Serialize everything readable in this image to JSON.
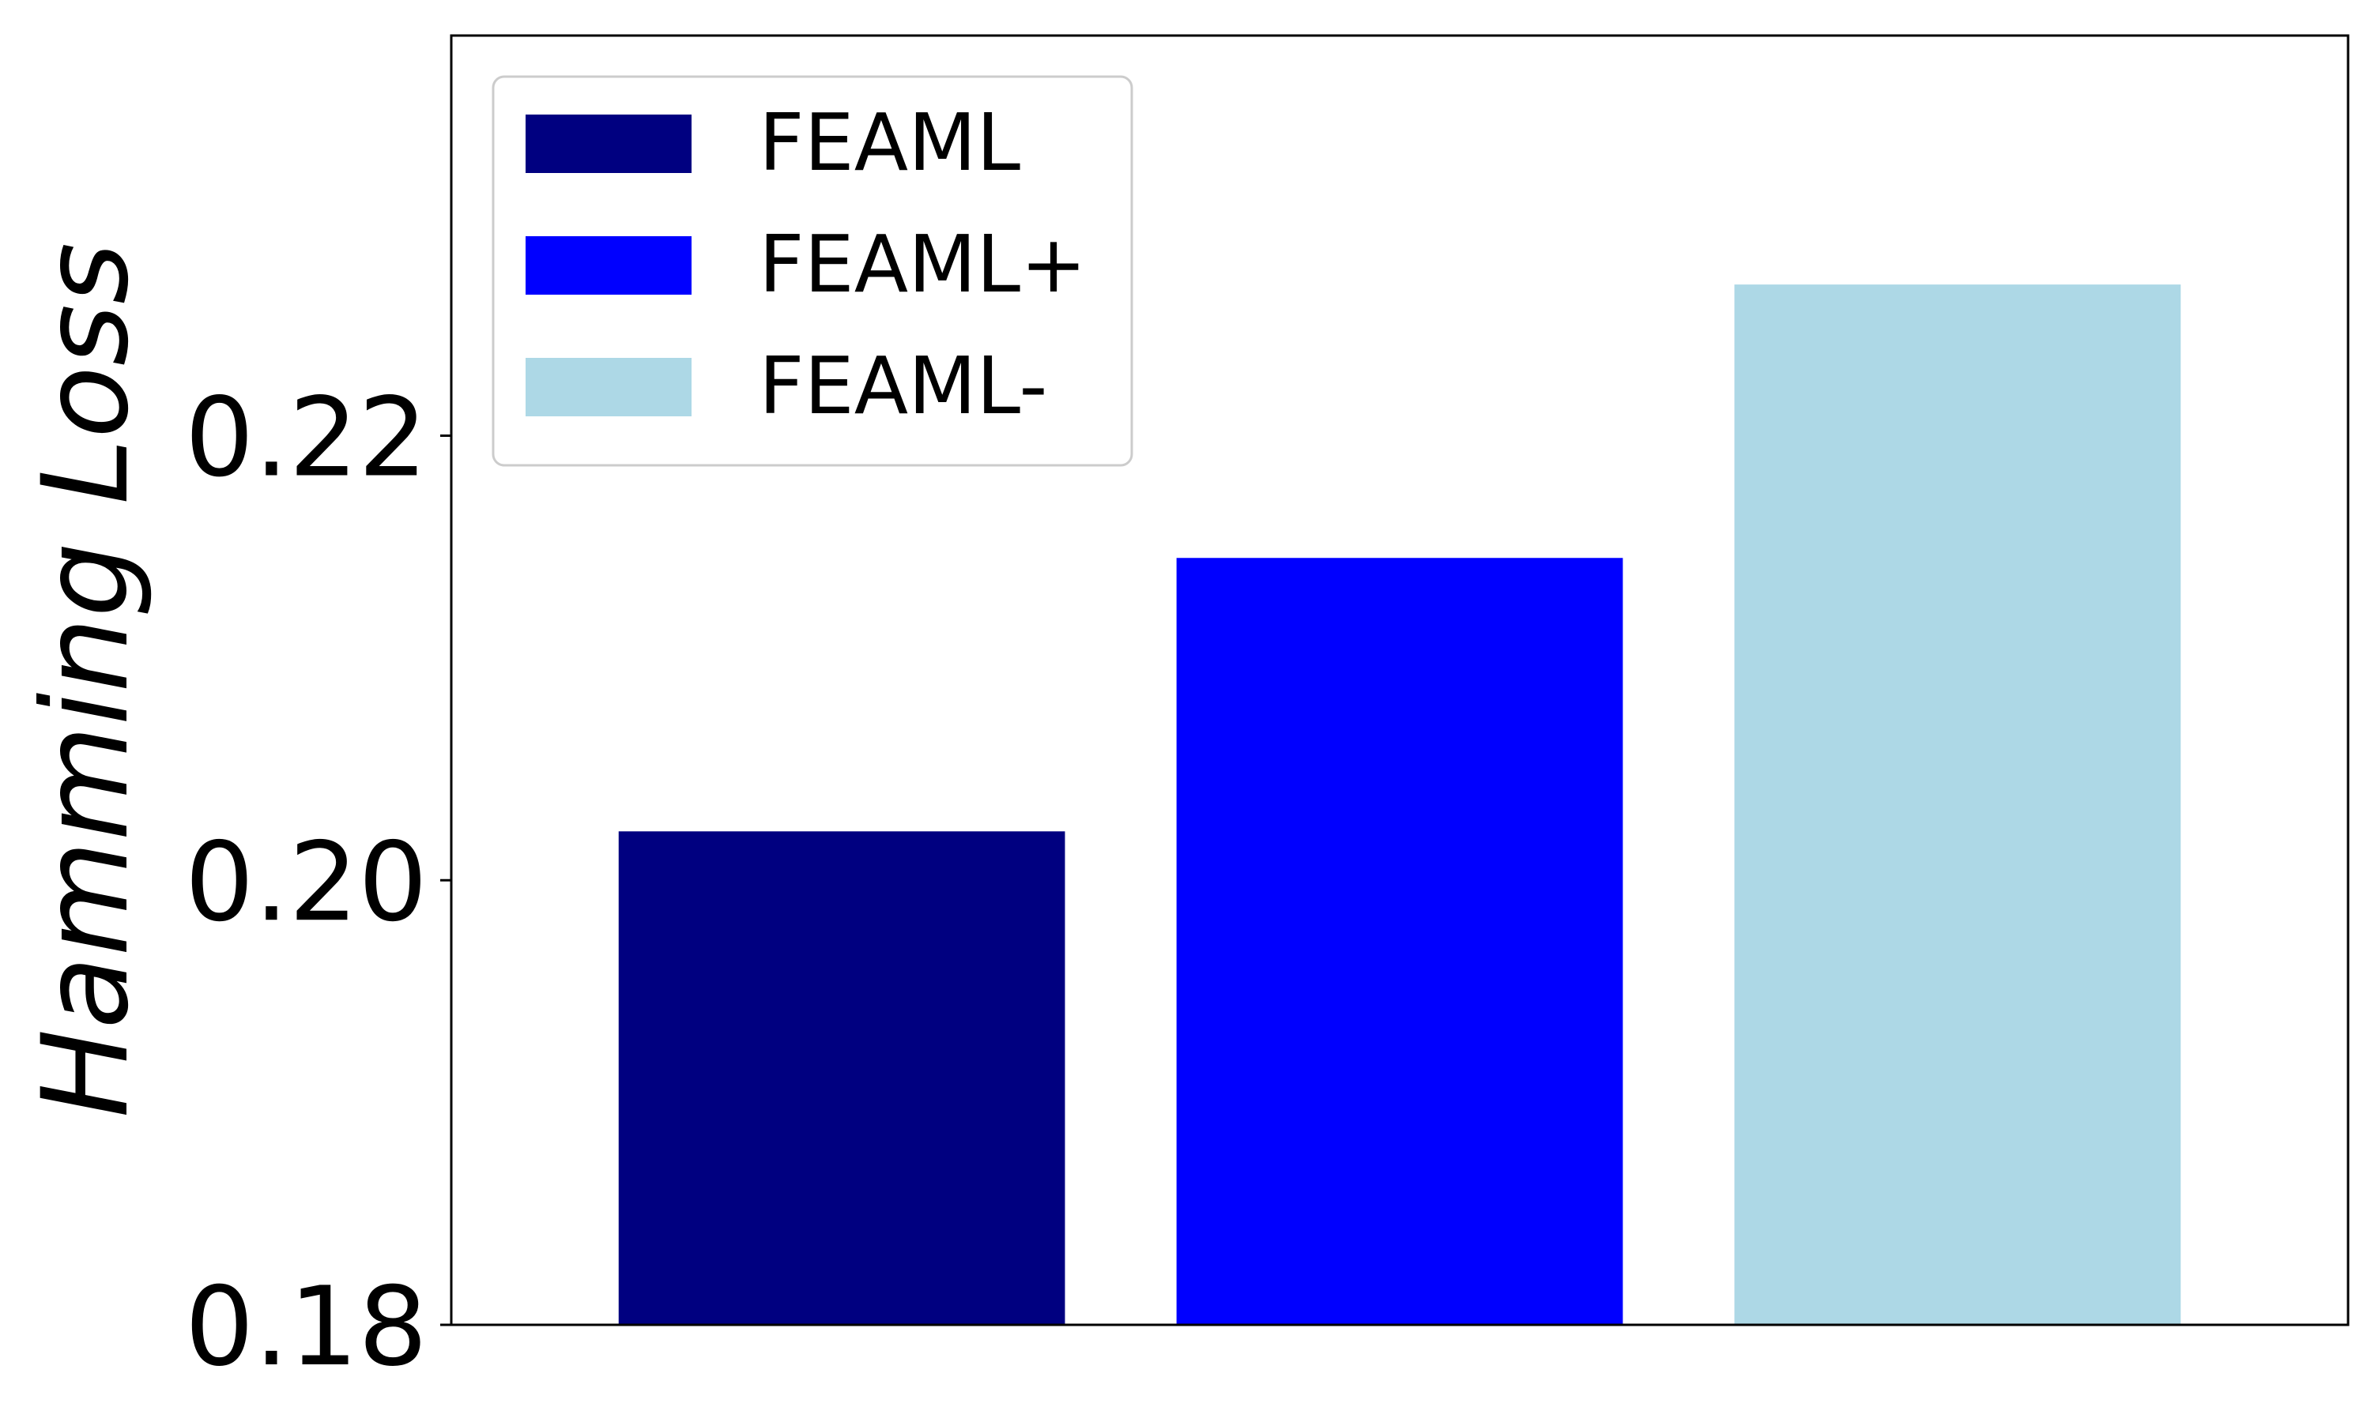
{
  "chart_data": {
    "type": "bar",
    "title": "",
    "xlabel": "",
    "ylabel": "Hamming Loss",
    "ylim": [
      0.18,
      0.238
    ],
    "yticks": [
      0.18,
      0.2,
      0.22
    ],
    "ytick_labels": [
      "0.18",
      "0.20",
      "0.22"
    ],
    "grid": false,
    "legend_position": "top-left",
    "series": [
      {
        "name": "FEAML",
        "value": 0.2022,
        "color": "#000080"
      },
      {
        "name": "FEAML+",
        "value": 0.2145,
        "color": "#0000ff"
      },
      {
        "name": "FEAML-",
        "value": 0.2268,
        "color": "#add8e6"
      }
    ]
  }
}
